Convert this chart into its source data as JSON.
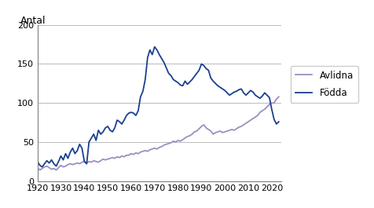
{
  "title_y": "Antal",
  "legend": [
    "Avlidna",
    "Födda"
  ],
  "line_colors": {
    "Avlidna": "#9b8fc0",
    "Födda": "#1a3f8f"
  },
  "ylim": [
    0,
    200
  ],
  "yticks": [
    0,
    50,
    100,
    150,
    200
  ],
  "xlim": [
    1920,
    2024
  ],
  "xticks": [
    1920,
    1930,
    1940,
    1950,
    1960,
    1970,
    1980,
    1990,
    2000,
    2010,
    2020
  ],
  "avlidna_years": [
    1920,
    1921,
    1922,
    1923,
    1924,
    1925,
    1926,
    1927,
    1928,
    1929,
    1930,
    1931,
    1932,
    1933,
    1934,
    1935,
    1936,
    1937,
    1938,
    1939,
    1940,
    1941,
    1942,
    1943,
    1944,
    1945,
    1946,
    1947,
    1948,
    1949,
    1950,
    1951,
    1952,
    1953,
    1954,
    1955,
    1956,
    1957,
    1958,
    1959,
    1960,
    1961,
    1962,
    1963,
    1964,
    1965,
    1966,
    1967,
    1968,
    1969,
    1970,
    1971,
    1972,
    1973,
    1974,
    1975,
    1976,
    1977,
    1978,
    1979,
    1980,
    1981,
    1982,
    1983,
    1984,
    1985,
    1986,
    1987,
    1988,
    1989,
    1990,
    1991,
    1992,
    1993,
    1994,
    1995,
    1996,
    1997,
    1998,
    1999,
    2000,
    2001,
    2002,
    2003,
    2004,
    2005,
    2006,
    2007,
    2008,
    2009,
    2010,
    2011,
    2012,
    2013,
    2014,
    2015,
    2016,
    2017,
    2018,
    2019,
    2020,
    2021,
    2022,
    2023
  ],
  "avlidna_vals": [
    17,
    14,
    16,
    18,
    19,
    17,
    15,
    16,
    14,
    17,
    20,
    18,
    19,
    21,
    22,
    21,
    22,
    23,
    22,
    24,
    25,
    23,
    25,
    24,
    26,
    25,
    24,
    26,
    28,
    27,
    28,
    29,
    30,
    29,
    31,
    30,
    32,
    31,
    33,
    33,
    35,
    34,
    36,
    35,
    37,
    38,
    39,
    38,
    40,
    41,
    42,
    41,
    43,
    44,
    46,
    47,
    48,
    49,
    51,
    50,
    52,
    51,
    53,
    55,
    57,
    58,
    60,
    63,
    64,
    67,
    70,
    72,
    68,
    66,
    64,
    60,
    62,
    63,
    64,
    62,
    63,
    64,
    65,
    66,
    65,
    67,
    69,
    70,
    72,
    74,
    76,
    78,
    80,
    82,
    84,
    88,
    90,
    92,
    95,
    98,
    100,
    100,
    105,
    108
  ],
  "fodda_years": [
    1920,
    1921,
    1922,
    1923,
    1924,
    1925,
    1926,
    1927,
    1928,
    1929,
    1930,
    1931,
    1932,
    1933,
    1934,
    1935,
    1936,
    1937,
    1938,
    1939,
    1940,
    1941,
    1942,
    1943,
    1944,
    1945,
    1946,
    1947,
    1948,
    1949,
    1950,
    1951,
    1952,
    1953,
    1954,
    1955,
    1956,
    1957,
    1958,
    1959,
    1960,
    1961,
    1962,
    1963,
    1964,
    1965,
    1966,
    1967,
    1968,
    1969,
    1970,
    1971,
    1972,
    1973,
    1974,
    1975,
    1976,
    1977,
    1978,
    1979,
    1980,
    1981,
    1982,
    1983,
    1984,
    1985,
    1986,
    1987,
    1988,
    1989,
    1990,
    1991,
    1992,
    1993,
    1994,
    1995,
    1996,
    1997,
    1998,
    1999,
    2000,
    2001,
    2002,
    2003,
    2004,
    2005,
    2006,
    2007,
    2008,
    2009,
    2010,
    2011,
    2012,
    2013,
    2014,
    2015,
    2016,
    2017,
    2018,
    2019,
    2020,
    2021,
    2022,
    2023
  ],
  "fodda_vals": [
    25,
    20,
    18,
    22,
    26,
    23,
    27,
    22,
    19,
    25,
    32,
    27,
    35,
    29,
    37,
    42,
    35,
    39,
    47,
    42,
    25,
    22,
    50,
    55,
    60,
    52,
    65,
    60,
    63,
    68,
    70,
    65,
    63,
    68,
    78,
    76,
    73,
    78,
    84,
    87,
    88,
    87,
    84,
    90,
    108,
    115,
    130,
    158,
    168,
    162,
    172,
    168,
    162,
    157,
    152,
    145,
    138,
    135,
    130,
    128,
    126,
    123,
    122,
    128,
    124,
    127,
    130,
    134,
    138,
    142,
    150,
    148,
    144,
    142,
    132,
    128,
    125,
    122,
    120,
    118,
    116,
    113,
    110,
    112,
    114,
    115,
    117,
    118,
    113,
    110,
    113,
    116,
    114,
    110,
    108,
    106,
    109,
    113,
    110,
    107,
    92,
    79,
    73,
    76
  ]
}
